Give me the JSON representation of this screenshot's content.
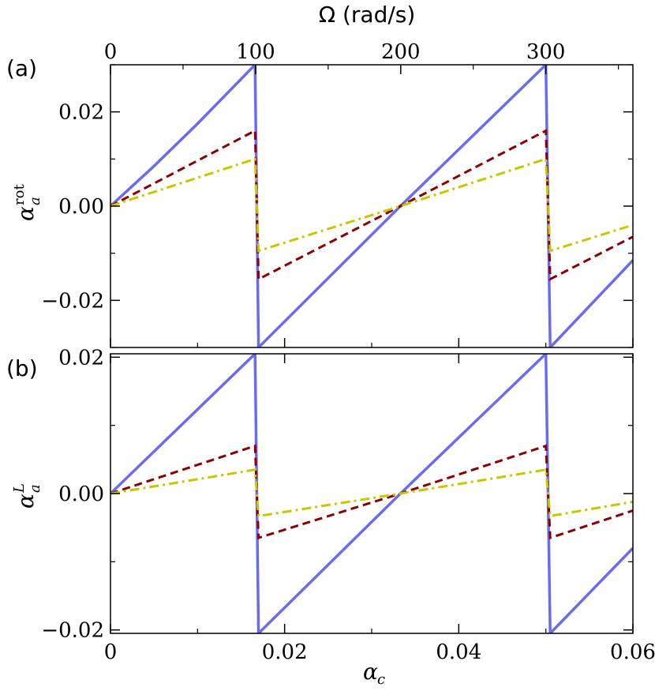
{
  "figure": {
    "top_axis_title": "Ω (rad/s)",
    "bottom_axis_title_main": "α",
    "bottom_axis_title_sub": "c"
  },
  "colors": {
    "series1": "#6b6bef",
    "series2": "#8b0000",
    "series3": "#c8c800"
  },
  "chart_data": [
    {
      "type": "line",
      "panel_label": "(a)",
      "ylabel_main": "α",
      "ylabel_sup": "rot",
      "ylabel_sub": "a",
      "xlim": [
        0,
        0.06
      ],
      "ylim": [
        -0.03,
        0.03
      ],
      "xticks": [
        0,
        0.02,
        0.04,
        0.06
      ],
      "yticks": [
        -0.02,
        0.0,
        0.02
      ],
      "ytick_labels": [
        "−0.02",
        "0.00",
        "0.02"
      ],
      "top_xlim": [
        0,
        360
      ],
      "top_xticks": [
        0,
        100,
        200,
        300
      ],
      "top_xtick_labels": [
        "0",
        "100",
        "200",
        "300"
      ],
      "series": [
        {
          "style": "solid",
          "points": [
            [
              0,
              0
            ],
            [
              0.005,
              0.0085
            ],
            [
              0.01,
              0.0175
            ],
            [
              0.0166,
              0.03
            ],
            [
              0.017,
              -0.03
            ],
            [
              0.0333,
              0.0
            ],
            [
              0.05,
              0.03
            ],
            [
              0.0505,
              -0.03
            ],
            [
              0.06,
              -0.0115
            ]
          ]
        },
        {
          "style": "dashed",
          "points": [
            [
              0,
              0
            ],
            [
              0.0166,
              0.016
            ],
            [
              0.017,
              -0.0155
            ],
            [
              0.0333,
              0.0
            ],
            [
              0.05,
              0.016
            ],
            [
              0.0505,
              -0.0155
            ],
            [
              0.06,
              -0.0065
            ]
          ]
        },
        {
          "style": "dashdot",
          "points": [
            [
              0,
              0
            ],
            [
              0.0166,
              0.01
            ],
            [
              0.017,
              -0.0095
            ],
            [
              0.0333,
              0.0
            ],
            [
              0.05,
              0.01
            ],
            [
              0.0505,
              -0.0095
            ],
            [
              0.06,
              -0.004
            ]
          ]
        }
      ]
    },
    {
      "type": "line",
      "panel_label": "(b)",
      "ylabel_main": "α",
      "ylabel_sup": "L",
      "ylabel_sub": "a",
      "xlim": [
        0,
        0.06
      ],
      "ylim": [
        -0.0205,
        0.0205
      ],
      "xticks": [
        0,
        0.02,
        0.04,
        0.06
      ],
      "xtick_labels": [
        "0",
        "0.02",
        "0.04",
        "0.06"
      ],
      "yticks": [
        -0.02,
        0.0,
        0.02
      ],
      "ytick_labels": [
        "−0.02",
        "0.00",
        "0.02"
      ],
      "series": [
        {
          "style": "solid",
          "points": [
            [
              0,
              0
            ],
            [
              0.0166,
              0.0205
            ],
            [
              0.017,
              -0.0205
            ],
            [
              0.0333,
              0.0
            ],
            [
              0.05,
              0.0205
            ],
            [
              0.0505,
              -0.0205
            ],
            [
              0.06,
              -0.008
            ]
          ]
        },
        {
          "style": "dashed",
          "points": [
            [
              0,
              0
            ],
            [
              0.0166,
              0.007
            ],
            [
              0.017,
              -0.0065
            ],
            [
              0.0333,
              0.0
            ],
            [
              0.05,
              0.007
            ],
            [
              0.0505,
              -0.0065
            ],
            [
              0.06,
              -0.0025
            ]
          ]
        },
        {
          "style": "dashdot",
          "points": [
            [
              0,
              0
            ],
            [
              0.0166,
              0.0035
            ],
            [
              0.017,
              -0.0033
            ],
            [
              0.0333,
              0.0
            ],
            [
              0.05,
              0.0035
            ],
            [
              0.0505,
              -0.0033
            ],
            [
              0.06,
              -0.0012
            ]
          ]
        }
      ]
    }
  ]
}
